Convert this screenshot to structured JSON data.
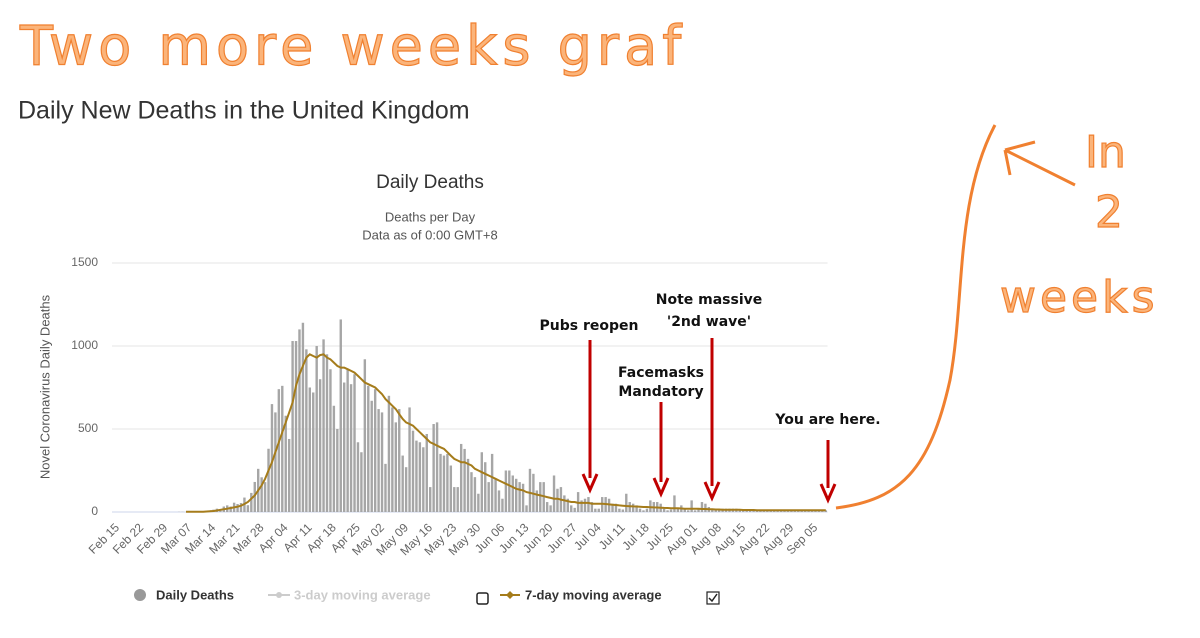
{
  "hand_notes": [
    "Two more weeks graf",
    "In",
    "2",
    "weeks"
  ],
  "header": {
    "title": "Daily New Deaths in the United Kingdom"
  },
  "chart_data": {
    "type": "bar",
    "title": "Daily Deaths",
    "subtitle": [
      "Deaths per Day",
      "Data as of 0:00 GMT+8"
    ],
    "y_label": "Novel Coronavirus Daily Deaths",
    "ylim": [
      0,
      1500
    ],
    "yticks": [
      0,
      500,
      1000,
      1500
    ],
    "grid": true,
    "categories": [
      "Feb 15",
      null,
      null,
      null,
      null,
      null,
      null,
      "Feb 22",
      null,
      null,
      null,
      null,
      null,
      null,
      "Feb 29",
      null,
      null,
      null,
      null,
      null,
      null,
      "Mar 07",
      null,
      null,
      null,
      null,
      null,
      null,
      "Mar 14",
      null,
      null,
      null,
      null,
      null,
      null,
      "Mar 21",
      null,
      null,
      null,
      null,
      null,
      null,
      "Mar 28",
      null,
      null,
      null,
      null,
      null,
      null,
      "Apr 04",
      null,
      null,
      null,
      null,
      null,
      null,
      "Apr 11",
      null,
      null,
      null,
      null,
      null,
      null,
      "Apr 18",
      null,
      null,
      null,
      null,
      null,
      null,
      "Apr 25",
      null,
      null,
      null,
      null,
      null,
      null,
      "May 02",
      null,
      null,
      null,
      null,
      null,
      null,
      "May 09",
      null,
      null,
      null,
      null,
      null,
      null,
      "May 16",
      null,
      null,
      null,
      null,
      null,
      null,
      "May 23",
      null,
      null,
      null,
      null,
      null,
      null,
      "May 30",
      null,
      null,
      null,
      null,
      null,
      null,
      "Jun 06",
      null,
      null,
      null,
      null,
      null,
      null,
      "Jun 13",
      null,
      null,
      null,
      null,
      null,
      null,
      "Jun 20",
      null,
      null,
      null,
      null,
      null,
      null,
      "Jun 27",
      null,
      null,
      null,
      null,
      null,
      null,
      "Jul 04",
      null,
      null,
      null,
      null,
      null,
      null,
      "Jul 11",
      null,
      null,
      null,
      null,
      null,
      null,
      "Jul 18",
      null,
      null,
      null,
      null,
      null,
      null,
      "Jul 25",
      null,
      null,
      null,
      null,
      null,
      null,
      "Aug 01",
      null,
      null,
      null,
      null,
      null,
      null,
      "Aug 08",
      null,
      null,
      null,
      null,
      null,
      null,
      "Aug 15",
      null,
      null,
      null,
      null,
      null,
      null,
      "Aug 22",
      null,
      null,
      null,
      null,
      null,
      null,
      "Aug 29",
      null,
      null,
      null,
      null,
      null,
      null,
      "Sep 05",
      null,
      null,
      null,
      null
    ],
    "series": [
      {
        "name": "Daily Deaths",
        "type": "bar",
        "color": "#a6a6a6",
        "values": [
          0,
          0,
          0,
          0,
          0,
          0,
          0,
          0,
          0,
          0,
          0,
          0,
          0,
          0,
          0,
          0,
          0,
          0,
          0,
          1,
          1,
          0,
          2,
          1,
          1,
          2,
          2,
          2,
          10,
          14,
          20,
          16,
          33,
          40,
          33,
          56,
          48,
          54,
          87,
          41,
          115,
          181,
          260,
          209,
          180,
          381,
          650,
          600,
          740,
          760,
          580,
          440,
          1030,
          1030,
          1100,
          1140,
          980,
          750,
          720,
          1000,
          800,
          1040,
          950,
          860,
          640,
          500,
          1160,
          780,
          860,
          770,
          830,
          420,
          360,
          920,
          760,
          670,
          740,
          620,
          600,
          290,
          700,
          630,
          540,
          620,
          340,
          270,
          630,
          490,
          430,
          420,
          390,
          470,
          150,
          530,
          540,
          350,
          340,
          350,
          280,
          150,
          150,
          410,
          380,
          320,
          240,
          210,
          110,
          360,
          300,
          180,
          350,
          200,
          130,
          80,
          250,
          250,
          220,
          200,
          180,
          170,
          40,
          260,
          230,
          130,
          180,
          180,
          60,
          40,
          220,
          140,
          150,
          100,
          80,
          40,
          25,
          120,
          70,
          80,
          90,
          60,
          20,
          20,
          90,
          90,
          80,
          50,
          50,
          20,
          15,
          110,
          60,
          50,
          40,
          20,
          10,
          20,
          70,
          60,
          60,
          50,
          20,
          10,
          15,
          100,
          20,
          40,
          20,
          10,
          70,
          10,
          20,
          60,
          50,
          30,
          20,
          10,
          10,
          20,
          20,
          20,
          20,
          20,
          10,
          10,
          10,
          10,
          10,
          10,
          10,
          10,
          10,
          10,
          10,
          10,
          10,
          10,
          10,
          10,
          10,
          10,
          10,
          10,
          10,
          10,
          10,
          10,
          10,
          10
        ]
      },
      {
        "name": "3-day moving average",
        "type": "line",
        "color": "#cccccc",
        "hidden": true
      },
      {
        "name": "7-day moving average",
        "type": "line",
        "color": "#a57c1b",
        "values": [
          null,
          null,
          null,
          null,
          null,
          null,
          null,
          null,
          null,
          null,
          null,
          null,
          null,
          null,
          null,
          null,
          null,
          null,
          null,
          null,
          null,
          1,
          1,
          1,
          1,
          1,
          2,
          3,
          4,
          6,
          9,
          13,
          16,
          20,
          24,
          28,
          32,
          38,
          48,
          60,
          80,
          100,
          130,
          160,
          200,
          250,
          300,
          360,
          420,
          480,
          540,
          600,
          660,
          760,
          830,
          880,
          930,
          950,
          940,
          930,
          945,
          950,
          930,
          920,
          900,
          880,
          870,
          870,
          860,
          850,
          840,
          820,
          800,
          780,
          770,
          760,
          750,
          730,
          710,
          680,
          660,
          640,
          620,
          590,
          560,
          540,
          530,
          520,
          500,
          480,
          460,
          440,
          420,
          410,
          400,
          390,
          380,
          360,
          340,
          320,
          310,
          300,
          300,
          290,
          280,
          260,
          250,
          240,
          230,
          220,
          210,
          200,
          190,
          180,
          170,
          160,
          150,
          140,
          135,
          130,
          120,
          115,
          110,
          105,
          100,
          95,
          90,
          85,
          80,
          80,
          75,
          70,
          65,
          60,
          60,
          55,
          55,
          55,
          55,
          50,
          50,
          50,
          50,
          48,
          46,
          44,
          42,
          40,
          38,
          36,
          35,
          34,
          33,
          32,
          30,
          30,
          29,
          28,
          27,
          26,
          25,
          24,
          23,
          22,
          22,
          21,
          20,
          20,
          20,
          20,
          19,
          18,
          18,
          17,
          16,
          15,
          15,
          14,
          14,
          14,
          13,
          13,
          13,
          12,
          12,
          12,
          12,
          11,
          11,
          11,
          11,
          11,
          10,
          10,
          10,
          10,
          10,
          10,
          10,
          10,
          10,
          10,
          10,
          10,
          10,
          10,
          10,
          10
        ]
      }
    ],
    "annotations": [
      {
        "text": [
          "Pubs reopen"
        ]
      },
      {
        "text": [
          "Facemasks",
          "Mandatory"
        ]
      },
      {
        "text": [
          "Note massive",
          "'2nd wave'"
        ]
      },
      {
        "text": [
          "You are here."
        ]
      }
    ]
  }
}
